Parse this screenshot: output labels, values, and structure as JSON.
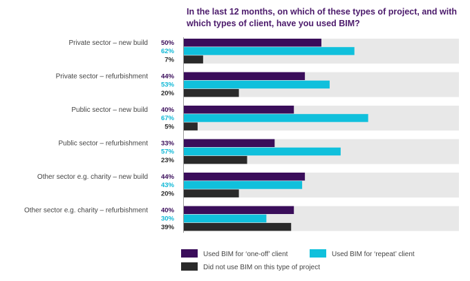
{
  "title": "In the last 12 months, on which of these types of project, and with which types of client, have you used BIM?",
  "colors": {
    "one_off": "#3a0d5a",
    "repeat": "#10c0dc",
    "did_not": "#2a2a2a",
    "background_band": "#e8e8e8",
    "repeat_label": "#10b8d6"
  },
  "chart_data": {
    "type": "bar",
    "orientation": "horizontal",
    "title": "In the last 12 months, on which of these types of project, and with which types of client, have you used BIM?",
    "xlim": [
      0,
      100
    ],
    "grid": false,
    "legend_position": "bottom",
    "categories": [
      "Private sector – new build",
      "Private sector – refurbishment",
      "Public sector – new build",
      "Public sector – refurbishment",
      "Other sector e.g. charity – new build",
      "Other sector e.g. charity – refurbishment"
    ],
    "series": [
      {
        "name": "Used BIM for ‘one-off’ client",
        "key": "one_off",
        "values": [
          50,
          44,
          40,
          33,
          44,
          40
        ],
        "labels": [
          "50%",
          "44%",
          "40%",
          "33%",
          "44%",
          "40%"
        ]
      },
      {
        "name": "Used BIM for ‘repeat’ client",
        "key": "repeat",
        "values": [
          62,
          53,
          67,
          57,
          43,
          30
        ],
        "labels": [
          "62%",
          "53%",
          "67%",
          "57%",
          "43%",
          "30%"
        ]
      },
      {
        "name": "Did not use BIM on this type of project",
        "key": "did_not",
        "values": [
          7,
          20,
          5,
          23,
          20,
          39
        ],
        "labels": [
          "7%",
          "20%",
          "5%",
          "23%",
          "20%",
          "39%"
        ]
      }
    ]
  }
}
